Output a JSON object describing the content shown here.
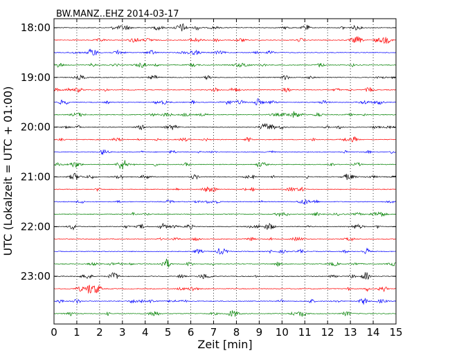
{
  "chart_data": {
    "type": "line",
    "title": "BW.MANZ..EHZ 2014-03-17",
    "xlabel": "Zeit  [min]",
    "ylabel": "UTC (Lokalzeit = UTC + 01:00)",
    "xlim": [
      0,
      15
    ],
    "x_ticks": [
      "0",
      "1",
      "2",
      "3",
      "4",
      "5",
      "6",
      "7",
      "8",
      "9",
      "10",
      "11",
      "12",
      "13",
      "14",
      "15"
    ],
    "y_ticks": [
      "18:00",
      "19:00",
      "20:00",
      "21:00",
      "22:00",
      "23:00"
    ],
    "trace_start_times_utc": [
      "18:00",
      "18:15",
      "18:30",
      "18:45",
      "19:00",
      "19:15",
      "19:30",
      "19:45",
      "20:00",
      "20:15",
      "20:30",
      "20:45",
      "21:00",
      "21:15",
      "21:30",
      "21:45",
      "22:00",
      "22:15",
      "22:30",
      "22:45",
      "23:00",
      "23:15",
      "23:30",
      "23:45"
    ],
    "trace_color_cycle": [
      "#000000",
      "#ff0000",
      "#0000ff",
      "#008000"
    ],
    "grid": "vertical dotted lines at each minute"
  }
}
